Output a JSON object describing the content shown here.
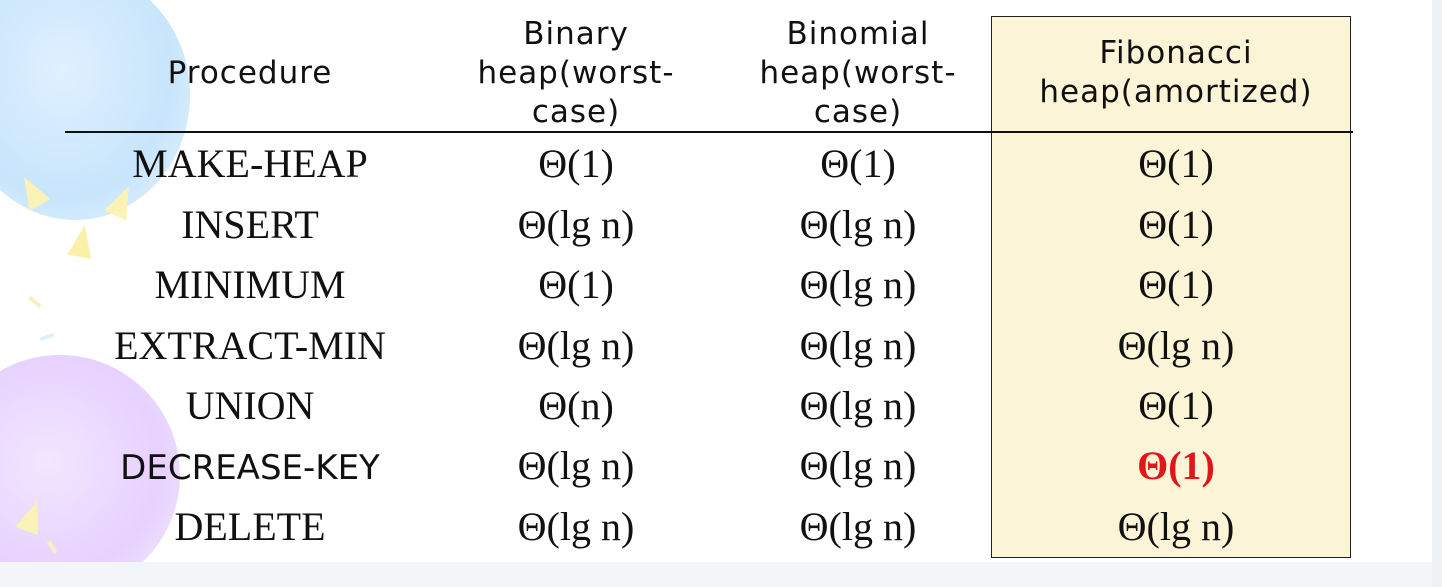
{
  "table": {
    "headers": {
      "procedure": [
        "Procedure"
      ],
      "binary": [
        "Binary",
        "heap(worst-",
        "case)"
      ],
      "binomial": [
        "Binomial",
        "heap(worst-",
        "case)"
      ],
      "fibonacci": [
        "Fibonacci",
        "heap(amortized)"
      ]
    },
    "rows": [
      {
        "procedure": "MAKE-HEAP",
        "binary": "Θ(1)",
        "binomial": "Θ(1)",
        "fibonacci": "Θ(1)"
      },
      {
        "procedure": "INSERT",
        "binary": "Θ(lg n)",
        "binomial": "Θ(lg n)",
        "fibonacci": "Θ(1)"
      },
      {
        "procedure": "MINIMUM",
        "binary": "Θ(1)",
        "binomial": "Θ(lg n)",
        "fibonacci": "Θ(1)"
      },
      {
        "procedure": "EXTRACT-MIN",
        "binary": "Θ(lg n)",
        "binomial": "Θ(lg n)",
        "fibonacci": "Θ(lg n)"
      },
      {
        "procedure": "UNION",
        "binary": "Θ(n)",
        "binomial": "Θ(lg n)",
        "fibonacci": "Θ(1)"
      },
      {
        "procedure": "DECREASE-KEY",
        "binary": "Θ(lg n)",
        "binomial": "Θ(lg n)",
        "fibonacci": "Θ(1)"
      },
      {
        "procedure": "DELETE",
        "binary": "Θ(lg n)",
        "binomial": "Θ(lg n)",
        "fibonacci": "Θ(lg n)"
      }
    ]
  },
  "colors": {
    "highlight_column_background": "#fbf4d6",
    "emphasis_text": "#e0161b",
    "text": "#111111"
  }
}
